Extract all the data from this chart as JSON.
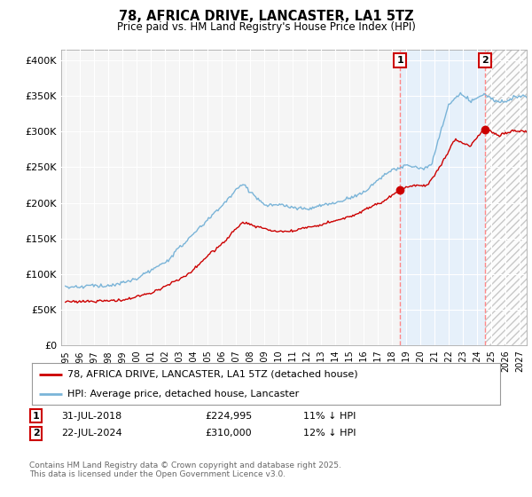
{
  "title": "78, AFRICA DRIVE, LANCASTER, LA1 5TZ",
  "subtitle": "Price paid vs. HM Land Registry's House Price Index (HPI)",
  "ylabel_ticks": [
    "£0",
    "£50K",
    "£100K",
    "£150K",
    "£200K",
    "£250K",
    "£300K",
    "£350K",
    "£400K"
  ],
  "ytick_values": [
    0,
    50000,
    100000,
    150000,
    200000,
    250000,
    300000,
    350000,
    400000
  ],
  "ylim": [
    0,
    415000
  ],
  "xlim_start": 1994.7,
  "xlim_end": 2027.5,
  "hpi_color": "#7ab4d8",
  "price_color": "#cc0000",
  "marker1_x": 2018.58,
  "marker1_y": 224995,
  "marker2_x": 2024.56,
  "marker2_y": 310000,
  "vline_color": "#ff8888",
  "fill_between_color": "#ddeeff",
  "fill_between_alpha": 0.6,
  "hatch_color": "#cccccc",
  "legend_line1": "78, AFRICA DRIVE, LANCASTER, LA1 5TZ (detached house)",
  "legend_line2": "HPI: Average price, detached house, Lancaster",
  "annotation1_date": "31-JUL-2018",
  "annotation1_price": "£224,995",
  "annotation1_hpi": "11% ↓ HPI",
  "annotation2_date": "22-JUL-2024",
  "annotation2_price": "£310,000",
  "annotation2_hpi": "12% ↓ HPI",
  "footer": "Contains HM Land Registry data © Crown copyright and database right 2025.\nThis data is licensed under the Open Government Licence v3.0.",
  "background_color": "#ffffff",
  "plot_bg_color": "#f5f5f5",
  "grid_color": "#ffffff"
}
